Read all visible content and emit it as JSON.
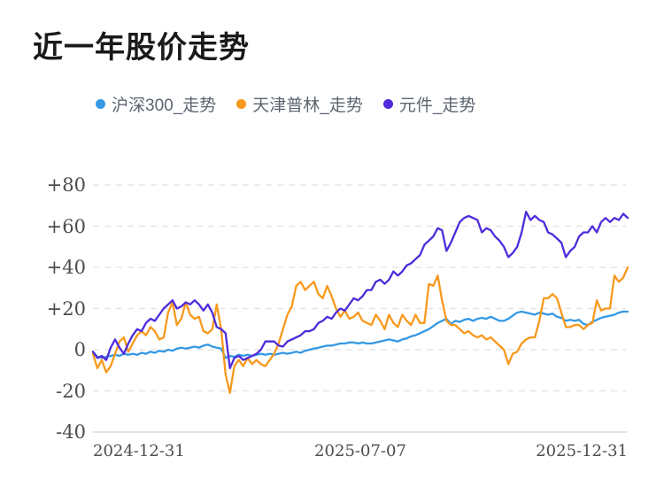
{
  "header": {
    "title": "近一年股价走势"
  },
  "legend": {
    "items": [
      {
        "label": "沪深300_走势",
        "color": "#3598E4"
      },
      {
        "label": "天津普林_走势",
        "color": "#F8991D"
      },
      {
        "label": "元件_走势",
        "color": "#4E2BDB"
      }
    ]
  },
  "colors": {
    "grid": "#e5e5e5",
    "axis": "#d8d8d8",
    "tick_text": "#4c4c4c",
    "legend_text": "#5b6570",
    "title_text": "#1a1a1a"
  },
  "chart_data": {
    "type": "line",
    "title": "近一年股价走势",
    "xlabel": "",
    "ylabel": "",
    "x_tick_labels": [
      "2024-12-31",
      "2025-07-07",
      "2025-12-31"
    ],
    "y_tick_labels": [
      "+80",
      "+60",
      "+40",
      "+20",
      "0",
      "-20",
      "-40"
    ],
    "y_ticks": [
      80,
      60,
      40,
      20,
      0,
      -20,
      -40
    ],
    "ylim": [
      -40,
      80
    ],
    "x_range_dates": [
      "2024-12-31",
      "2025-12-31"
    ],
    "grid": "horizontal-dashed",
    "legend_position": "top",
    "series": [
      {
        "name": "沪深300_走势",
        "color": "#3598E4",
        "values": [
          -1,
          -3.5,
          -4,
          -3.5,
          -3,
          -2.5,
          -3,
          -2,
          -2.5,
          -2,
          -2.5,
          -1.5,
          -2,
          -1,
          -1.5,
          -0.5,
          -1,
          0,
          -0.5,
          0.5,
          1,
          0.5,
          1,
          1.5,
          1,
          2,
          2.5,
          1.5,
          1,
          0.5,
          -4,
          -3,
          -3.5,
          -2.5,
          -3,
          -2.5,
          -3,
          -2.5,
          -2,
          -2.5,
          -2,
          -2.5,
          -2,
          -1.5,
          -2,
          -1.5,
          -1,
          -1.5,
          -0.5,
          0,
          0.5,
          1,
          1.5,
          2,
          2,
          2.5,
          3,
          3,
          3.5,
          3.5,
          3,
          3.5,
          3,
          3,
          3.5,
          4,
          4.5,
          5,
          4.5,
          4,
          5,
          5.5,
          6.5,
          7,
          8,
          9,
          10,
          11.5,
          13,
          14,
          15,
          12.5,
          14,
          13.5,
          14.5,
          15,
          14,
          15,
          15.5,
          15,
          16,
          15,
          14,
          14,
          15,
          16.5,
          18,
          18.5,
          18,
          17.5,
          17,
          18,
          17.5,
          17,
          17.5,
          16,
          15.5,
          14,
          14.5,
          14,
          14.5,
          12.5,
          12,
          13.5,
          14.5,
          15.5,
          16,
          16.5,
          17,
          18,
          18.5,
          18.5
        ]
      },
      {
        "name": "天津普林_走势",
        "color": "#F8991D",
        "values": [
          -2,
          -9,
          -5,
          -11,
          -8,
          -2,
          4,
          6,
          -1,
          3,
          7,
          9,
          7,
          11,
          9,
          5,
          6,
          18,
          23,
          12,
          15,
          23,
          17,
          15,
          16,
          9,
          8,
          10,
          22,
          10,
          -12,
          -21,
          -8,
          -5,
          -8,
          -4,
          -7,
          -5,
          -7,
          -8,
          -5,
          -2,
          3,
          10,
          17,
          21,
          31,
          33,
          29,
          31,
          33,
          27,
          25,
          31,
          26,
          20,
          16,
          19,
          15,
          16,
          18,
          14,
          13,
          12,
          17,
          14,
          10,
          17,
          13,
          11,
          17,
          14,
          12,
          17,
          13,
          13,
          32,
          31,
          36,
          24,
          14,
          12,
          12,
          10,
          8,
          9,
          7,
          6,
          7,
          5,
          6,
          4,
          2,
          0,
          -7,
          -2,
          -1,
          3,
          5,
          6,
          6,
          14,
          25,
          25,
          27,
          25,
          18,
          11,
          11,
          12,
          12,
          10,
          12,
          13,
          24,
          19,
          20,
          20,
          36,
          33,
          35,
          40
        ]
      },
      {
        "name": "元件_走势",
        "color": "#4E2BDB",
        "values": [
          -1,
          -4,
          -3,
          -5,
          1,
          5,
          1,
          -2,
          3,
          7,
          10,
          9,
          13,
          15,
          14,
          17,
          20,
          22,
          24,
          20,
          21,
          23,
          22,
          24,
          22,
          19,
          22,
          18,
          11,
          10,
          8,
          -9,
          -4,
          -3,
          -5,
          -4,
          -3,
          -2,
          0,
          4,
          4,
          4,
          2,
          1.5,
          4,
          5,
          6,
          7,
          9,
          9,
          10,
          13,
          14,
          16,
          15,
          18,
          20,
          19,
          22,
          25,
          24,
          26,
          29,
          29,
          33,
          34,
          32,
          34,
          38,
          36,
          38,
          41,
          42,
          44,
          46,
          51,
          53,
          55,
          59,
          58,
          48,
          52,
          57,
          62,
          64,
          65,
          64,
          63,
          57,
          59,
          58,
          55,
          53,
          50,
          45,
          47,
          50,
          57,
          67,
          63,
          65,
          63,
          62,
          57,
          56,
          54,
          52,
          45,
          48,
          50,
          55,
          57,
          57,
          60,
          57,
          62,
          64,
          62,
          64,
          63,
          66,
          64
        ]
      }
    ]
  }
}
